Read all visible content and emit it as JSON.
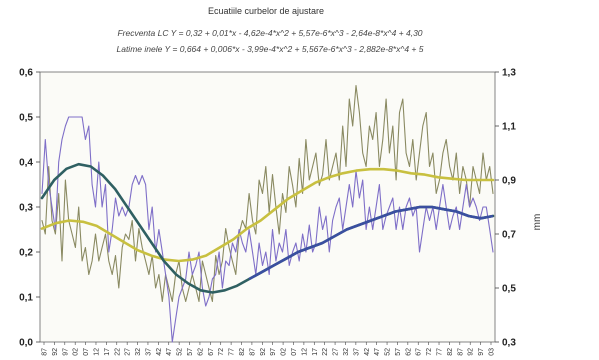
{
  "chart_data": {
    "type": "line",
    "title": "Ecuatiile curbelor de ajustare",
    "equations": [
      "Frecventa LC  Y = 0,32 + 0,01*x - 4,62e-4*x^2 + 5,57e-6*x^3 - 2,64e-8*x^4 + 4,30",
      "Latime inele Y = 0,664 + 0,006*x - 3,99e-4*x^2 + 5,567e-6*x^3 - 2,882e-8*x^4 + 5"
    ],
    "y_left": {
      "ylim": [
        0,
        0.6
      ],
      "ticks": [
        "0,0",
        "0,1",
        "0,2",
        "0,3",
        "0,4",
        "0,5",
        "0,6"
      ]
    },
    "y_right": {
      "ylim": [
        0.3,
        1.3
      ],
      "ticks": [
        "0,3",
        "0,5",
        "0,7",
        "0,9",
        "1,1",
        "1,3"
      ],
      "ylabel": "mm"
    },
    "x_ticks": [
      "87",
      "92",
      "97",
      "02",
      "07",
      "12",
      "17",
      "22",
      "27",
      "32",
      "37",
      "42",
      "47",
      "52",
      "57",
      "62",
      "67",
      "72",
      "77",
      "82",
      "87",
      "92",
      "97",
      "02",
      "07",
      "12",
      "17",
      "22",
      "27",
      "32",
      "37",
      "42",
      "47",
      "52",
      "57",
      "62",
      "67",
      "72",
      "77",
      "82",
      "87",
      "92",
      "97",
      "03"
    ],
    "grid": false,
    "colors": {
      "raw_frequency": "#7f6fc8",
      "raw_width": "#8a8a62",
      "fit_frequency": "#3a4fa0",
      "fit_width": "#c8c040",
      "fit_dark": "#2f6062"
    },
    "series": [
      {
        "axis": "left",
        "values": [
          0.33,
          0.45,
          0.35,
          0.3,
          0.25,
          0.4,
          0.45,
          0.48,
          0.5,
          0.5,
          0.5,
          0.5,
          0.5,
          0.45,
          0.48,
          0.35,
          0.3,
          0.4,
          0.3,
          0.35,
          0.2,
          0.25,
          0.32,
          0.28,
          0.3,
          0.28,
          0.3,
          0.35,
          0.37,
          0.35,
          0.37,
          0.35,
          0.25,
          0.3,
          0.2,
          0.25,
          0.2,
          0.15,
          0.1,
          0.0,
          0.05,
          0.1,
          0.12,
          0.14,
          0.2,
          0.15,
          0.17,
          0.2,
          0.12,
          0.08,
          0.1,
          0.14,
          0.15,
          0.2,
          0.12,
          0.18,
          0.17,
          0.22,
          0.2,
          0.25,
          0.22,
          0.2,
          0.25,
          0.2,
          0.15,
          0.22,
          0.17,
          0.2,
          0.15,
          0.25,
          0.18,
          0.22,
          0.2,
          0.25,
          0.17,
          0.2,
          0.22,
          0.18,
          0.24,
          0.2,
          0.26,
          0.2,
          0.22,
          0.3,
          0.25,
          0.28,
          0.2,
          0.27,
          0.3,
          0.32,
          0.25,
          0.3,
          0.35,
          0.3,
          0.38,
          0.32,
          0.36,
          0.25,
          0.3,
          0.25,
          0.3,
          0.35,
          0.25,
          0.28,
          0.3,
          0.32,
          0.25,
          0.3,
          0.25,
          0.3,
          0.32,
          0.28,
          0.3,
          0.2,
          0.25,
          0.3,
          0.27,
          0.3,
          0.25,
          0.3,
          0.35,
          0.3,
          0.25,
          0.28,
          0.3,
          0.25,
          0.3,
          0.35,
          0.3,
          0.32,
          0.3,
          0.27,
          0.3,
          0.3,
          0.25,
          0.2
        ]
      },
      {
        "axis": "right",
        "values": [
          0.75,
          0.7,
          0.95,
          0.75,
          0.7,
          0.85,
          0.6,
          0.9,
          0.75,
          0.7,
          0.65,
          0.8,
          0.6,
          0.65,
          0.55,
          0.6,
          0.7,
          0.6,
          0.65,
          0.7,
          0.6,
          0.55,
          0.62,
          0.5,
          0.65,
          0.7,
          0.68,
          0.75,
          0.6,
          0.72,
          0.65,
          0.6,
          0.55,
          0.62,
          0.5,
          0.55,
          0.45,
          0.55,
          0.5,
          0.45,
          0.55,
          0.6,
          0.5,
          0.45,
          0.5,
          0.55,
          0.5,
          0.45,
          0.6,
          0.55,
          0.5,
          0.45,
          0.62,
          0.55,
          0.6,
          0.72,
          0.65,
          0.6,
          0.55,
          0.7,
          0.75,
          0.72,
          0.85,
          0.75,
          0.7,
          0.9,
          0.85,
          0.95,
          0.78,
          0.92,
          0.8,
          0.7,
          0.85,
          0.78,
          0.95,
          0.88,
          0.8,
          0.98,
          0.85,
          1.05,
          0.9,
          0.95,
          1.0,
          0.88,
          0.92,
          1.05,
          0.9,
          0.95,
          1.0,
          0.9,
          1.1,
          0.95,
          1.2,
          1.1,
          1.25,
          1.15,
          1.0,
          0.95,
          1.1,
          1.05,
          1.15,
          0.95,
          1.05,
          1.2,
          1.0,
          1.1,
          0.9,
          1.15,
          1.2,
          1.0,
          0.95,
          1.05,
          0.9,
          1.0,
          1.1,
          1.15,
          0.95,
          1.0,
          0.85,
          0.9,
          1.0,
          1.05,
          0.95,
          0.9,
          1.0,
          0.85,
          0.95,
          0.9,
          0.8,
          0.95,
          0.9,
          0.85,
          1.0,
          0.9,
          0.95,
          0.85
        ]
      },
      {
        "axis": "left",
        "values": [
          0.32,
          0.36,
          0.385,
          0.395,
          0.39,
          0.37,
          0.34,
          0.3,
          0.26,
          0.22,
          0.18,
          0.15,
          0.13,
          0.115,
          0.11,
          0.115,
          0.125,
          0.14,
          0.155,
          0.17,
          0.185,
          0.2,
          0.21,
          0.22,
          0.235,
          0.25,
          0.26,
          0.27,
          0.28,
          0.29,
          0.295,
          0.3,
          0.3,
          0.295,
          0.29,
          0.28,
          0.275,
          0.28
        ]
      },
      {
        "axis": "right",
        "values": [
          0.72,
          0.74,
          0.75,
          0.745,
          0.73,
          0.7,
          0.67,
          0.64,
          0.62,
          0.605,
          0.6,
          0.605,
          0.62,
          0.65,
          0.68,
          0.72,
          0.75,
          0.79,
          0.83,
          0.86,
          0.89,
          0.91,
          0.925,
          0.935,
          0.94,
          0.94,
          0.935,
          0.925,
          0.92,
          0.91,
          0.905,
          0.9,
          0.9,
          0.9
        ]
      }
    ]
  }
}
